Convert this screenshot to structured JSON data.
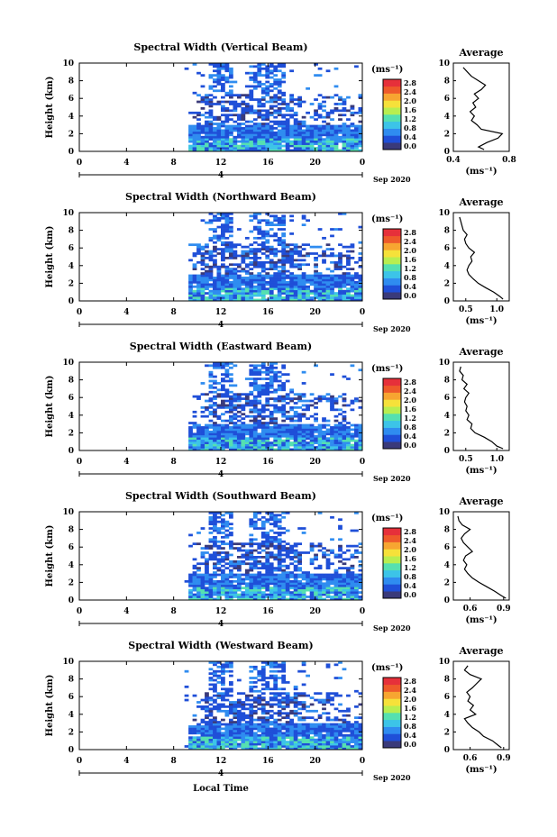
{
  "figure": {
    "date_label": "Sep 2020",
    "xlabel": "Local Time",
    "xlabel_spaced": "L o c a l   T i m e",
    "day_marker": "4",
    "units": "(ms⁻¹)",
    "avg_title": "Average",
    "colorbar_ticks": [
      "2.8",
      "2.4",
      "2.0",
      "1.6",
      "1.2",
      "0.8",
      "0.4",
      "0.0"
    ],
    "colors": [
      "#3a3a7a",
      "#1f4fd8",
      "#2f8cf0",
      "#3cc4e8",
      "#55e0b0",
      "#b8ee50",
      "#f6e13a",
      "#f7a531",
      "#ee5a2a",
      "#e6303a"
    ]
  },
  "chart_data": [
    {
      "type": "heatmap",
      "title": "Spectral Width (Vertical Beam)",
      "ylabel": "Height (km)",
      "xlim": [
        0,
        24
      ],
      "ylim": [
        0,
        10
      ],
      "xticks": [
        "0",
        "4",
        "8",
        "12",
        "16",
        "20",
        "0"
      ],
      "yticks": [
        "0",
        "2",
        "4",
        "6",
        "8",
        "10"
      ],
      "average": {
        "xlim": [
          0.4,
          0.8
        ],
        "xticks": [
          "0.4",
          "0.8"
        ],
        "heights": [
          0.2,
          0.5,
          1,
          1.5,
          2,
          2.5,
          3,
          3.5,
          4,
          4.5,
          5,
          5.5,
          6,
          6.5,
          7,
          7.5,
          8,
          8.5,
          9,
          9.5
        ],
        "values": [
          0.62,
          0.58,
          0.64,
          0.72,
          0.75,
          0.6,
          0.57,
          0.53,
          0.55,
          0.52,
          0.56,
          0.54,
          0.58,
          0.55,
          0.6,
          0.63,
          0.58,
          0.53,
          0.5,
          0.47
        ]
      }
    },
    {
      "type": "heatmap",
      "title": "Spectral Width (Northward Beam)",
      "ylabel": "Height (km)",
      "xlim": [
        0,
        24
      ],
      "ylim": [
        0,
        10
      ],
      "xticks": [
        "0",
        "4",
        "8",
        "12",
        "16",
        "20",
        "0"
      ],
      "yticks": [
        "0",
        "2",
        "4",
        "6",
        "8",
        "10"
      ],
      "average": {
        "xlim": [
          0.3,
          1.2
        ],
        "xticks": [
          "0.5",
          "1.0"
        ],
        "heights": [
          0.2,
          0.5,
          1,
          1.5,
          2,
          2.5,
          3,
          3.5,
          4,
          4.5,
          5,
          5.5,
          6,
          6.5,
          7,
          7.5,
          8,
          8.5,
          9,
          9.5
        ],
        "values": [
          1.1,
          1.05,
          0.95,
          0.82,
          0.7,
          0.62,
          0.55,
          0.52,
          0.55,
          0.6,
          0.58,
          0.64,
          0.55,
          0.5,
          0.48,
          0.52,
          0.46,
          0.44,
          0.42,
          0.4
        ]
      }
    },
    {
      "type": "heatmap",
      "title": "Spectral Width (Eastward Beam)",
      "ylabel": "Height (km)",
      "xlim": [
        0,
        24
      ],
      "ylim": [
        0,
        10
      ],
      "xticks": [
        "0",
        "4",
        "8",
        "12",
        "16",
        "20",
        "0"
      ],
      "yticks": [
        "0",
        "2",
        "4",
        "6",
        "8",
        "10"
      ],
      "average": {
        "xlim": [
          0.3,
          1.2
        ],
        "xticks": [
          "0.5",
          "1.0"
        ],
        "heights": [
          0.2,
          0.5,
          1,
          1.5,
          2,
          2.5,
          3,
          3.5,
          4,
          4.5,
          5,
          5.5,
          6,
          6.5,
          7,
          7.5,
          8,
          8.5,
          9,
          9.5
        ],
        "values": [
          1.1,
          1.0,
          0.92,
          0.8,
          0.65,
          0.58,
          0.6,
          0.52,
          0.55,
          0.5,
          0.52,
          0.48,
          0.5,
          0.55,
          0.47,
          0.52,
          0.44,
          0.46,
          0.4,
          0.42
        ]
      }
    },
    {
      "type": "heatmap",
      "title": "Spectral Width (Southward Beam)",
      "ylabel": "Height (km)",
      "xlim": [
        0,
        24
      ],
      "ylim": [
        0,
        10
      ],
      "xticks": [
        "0",
        "4",
        "8",
        "12",
        "16",
        "20",
        "0"
      ],
      "yticks": [
        "0",
        "2",
        "4",
        "6",
        "8",
        "10"
      ],
      "average": {
        "xlim": [
          0.45,
          0.95
        ],
        "xticks": [
          "0.6",
          "0.9"
        ],
        "heights": [
          0.2,
          0.5,
          1,
          1.5,
          2,
          2.5,
          3,
          3.5,
          4,
          4.5,
          5,
          5.5,
          6,
          6.5,
          7,
          7.5,
          8,
          8.5,
          9,
          9.5
        ],
        "values": [
          0.92,
          0.88,
          0.82,
          0.75,
          0.68,
          0.62,
          0.58,
          0.55,
          0.57,
          0.54,
          0.56,
          0.62,
          0.58,
          0.54,
          0.52,
          0.55,
          0.6,
          0.53,
          0.5,
          0.49
        ]
      }
    },
    {
      "type": "heatmap",
      "title": "Spectral Width (Westward Beam)",
      "ylabel": "Height (km)",
      "xlim": [
        0,
        24
      ],
      "ylim": [
        0,
        10
      ],
      "xticks": [
        "0",
        "4",
        "8",
        "12",
        "16",
        "20",
        "0"
      ],
      "yticks": [
        "0",
        "2",
        "4",
        "6",
        "8",
        "10"
      ],
      "average": {
        "xlim": [
          0.45,
          0.95
        ],
        "xticks": [
          "0.6",
          "0.9"
        ],
        "heights": [
          0.2,
          0.5,
          1,
          1.5,
          2,
          2.5,
          3,
          3.5,
          4,
          4.5,
          5,
          5.5,
          6,
          6.5,
          7,
          7.5,
          8,
          8.5,
          9,
          9.5
        ],
        "values": [
          0.88,
          0.85,
          0.8,
          0.72,
          0.68,
          0.62,
          0.58,
          0.55,
          0.65,
          0.6,
          0.63,
          0.58,
          0.6,
          0.57,
          0.62,
          0.66,
          0.7,
          0.6,
          0.55,
          0.58
        ]
      }
    }
  ]
}
